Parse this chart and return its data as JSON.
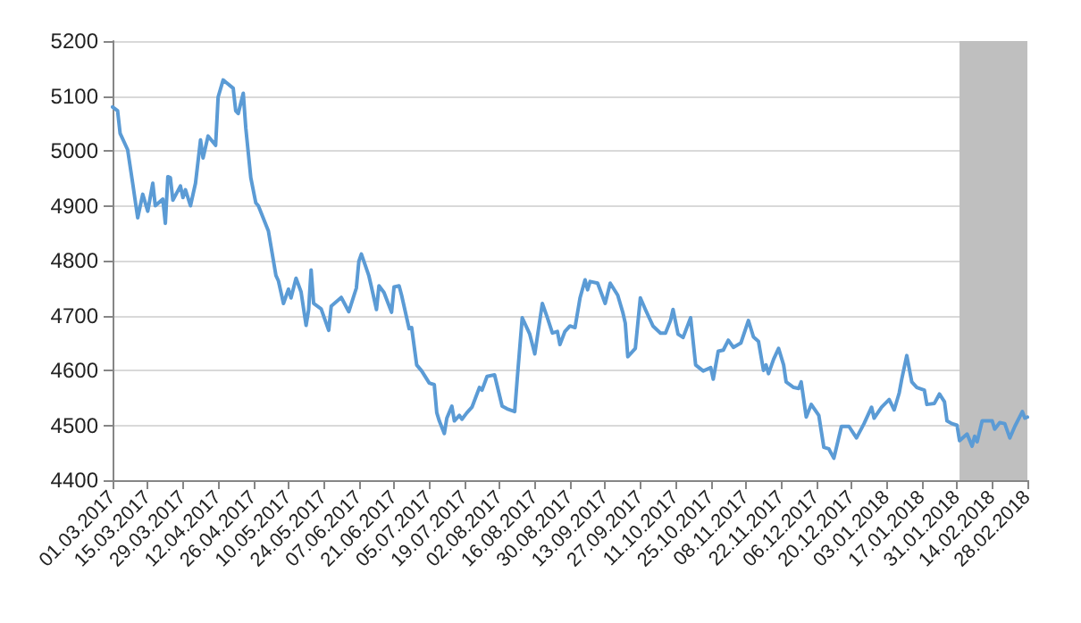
{
  "chart_data": {
    "type": "line",
    "x": [
      "2017-03-01",
      "2017-03-03",
      "2017-03-04",
      "2017-03-07",
      "2017-03-09",
      "2017-03-11",
      "2017-03-13",
      "2017-03-15",
      "2017-03-17",
      "2017-03-18",
      "2017-03-21",
      "2017-03-22",
      "2017-03-23",
      "2017-03-24",
      "2017-03-25",
      "2017-03-28",
      "2017-03-29",
      "2017-03-30",
      "2017-04-01",
      "2017-04-03",
      "2017-04-05",
      "2017-04-06",
      "2017-04-08",
      "2017-04-11",
      "2017-04-12",
      "2017-04-14",
      "2017-04-18",
      "2017-04-19",
      "2017-04-20",
      "2017-04-22",
      "2017-04-23",
      "2017-04-25",
      "2017-04-27",
      "2017-04-28",
      "2017-05-02",
      "2017-05-05",
      "2017-05-06",
      "2017-05-08",
      "2017-05-10",
      "2017-05-11",
      "2017-05-13",
      "2017-05-15",
      "2017-05-17",
      "2017-05-18",
      "2017-05-19",
      "2017-05-20",
      "2017-05-23",
      "2017-05-26",
      "2017-05-27",
      "2017-05-31",
      "2017-06-03",
      "2017-06-06",
      "2017-06-07",
      "2017-06-08",
      "2017-06-11",
      "2017-06-12",
      "2017-06-14",
      "2017-06-15",
      "2017-06-17",
      "2017-06-20",
      "2017-06-21",
      "2017-06-23",
      "2017-06-24",
      "2017-06-27",
      "2017-06-28",
      "2017-06-30",
      "2017-07-02",
      "2017-07-05",
      "2017-07-07",
      "2017-07-08",
      "2017-07-09",
      "2017-07-11",
      "2017-07-12",
      "2017-07-14",
      "2017-07-15",
      "2017-07-17",
      "2017-07-18",
      "2017-07-20",
      "2017-07-22",
      "2017-07-25",
      "2017-07-26",
      "2017-07-28",
      "2017-07-31",
      "2017-08-03",
      "2017-08-05",
      "2017-08-08",
      "2017-08-09",
      "2017-08-11",
      "2017-08-14",
      "2017-08-16",
      "2017-08-19",
      "2017-08-21",
      "2017-08-23",
      "2017-08-25",
      "2017-08-26",
      "2017-08-28",
      "2017-08-30",
      "2017-09-01",
      "2017-09-03",
      "2017-09-05",
      "2017-09-06",
      "2017-09-07",
      "2017-09-10",
      "2017-09-13",
      "2017-09-15",
      "2017-09-18",
      "2017-09-20",
      "2017-09-21",
      "2017-09-22",
      "2017-09-25",
      "2017-09-27",
      "2017-09-29",
      "2017-10-02",
      "2017-10-05",
      "2017-10-07",
      "2017-10-09",
      "2017-10-10",
      "2017-10-12",
      "2017-10-14",
      "2017-10-17",
      "2017-10-19",
      "2017-10-22",
      "2017-10-25",
      "2017-10-26",
      "2017-10-28",
      "2017-10-30",
      "2017-11-01",
      "2017-11-03",
      "2017-11-06",
      "2017-11-09",
      "2017-11-11",
      "2017-11-13",
      "2017-11-15",
      "2017-11-16",
      "2017-11-17",
      "2017-11-19",
      "2017-11-21",
      "2017-11-23",
      "2017-11-24",
      "2017-11-27",
      "2017-11-29",
      "2017-11-30",
      "2017-12-02",
      "2017-12-04",
      "2017-12-07",
      "2017-12-09",
      "2017-12-11",
      "2017-12-13",
      "2017-12-16",
      "2017-12-19",
      "2017-12-22",
      "2017-12-25",
      "2017-12-28",
      "2017-12-29",
      "2018-01-01",
      "2018-01-04",
      "2018-01-06",
      "2018-01-08",
      "2018-01-09",
      "2018-01-11",
      "2018-01-13",
      "2018-01-15",
      "2018-01-18",
      "2018-01-19",
      "2018-01-22",
      "2018-01-24",
      "2018-01-26",
      "2018-01-27",
      "2018-01-29",
      "2018-01-31",
      "2018-02-01",
      "2018-02-04",
      "2018-02-06",
      "2018-02-07",
      "2018-02-08",
      "2018-02-10",
      "2018-02-12",
      "2018-02-14",
      "2018-02-15",
      "2018-02-17",
      "2018-02-19",
      "2018-02-21",
      "2018-02-23",
      "2018-02-26",
      "2018-02-27",
      "2018-02-28"
    ],
    "series": [
      {
        "color": "#5b9bd5",
        "values": [
          5080,
          5073,
          5032,
          5002,
          4941,
          4878,
          4921,
          4890,
          4941,
          4900,
          4912,
          4868,
          4953,
          4951,
          4910,
          4936,
          4915,
          4929,
          4900,
          4941,
          5020,
          4987,
          5027,
          5010,
          5098,
          5129,
          5114,
          5073,
          5068,
          5105,
          5042,
          4951,
          4905,
          4900,
          4854,
          4773,
          4763,
          4722,
          4748,
          4732,
          4768,
          4743,
          4682,
          4710,
          4783,
          4722,
          4712,
          4673,
          4717,
          4733,
          4707,
          4750,
          4799,
          4812,
          4772,
          4752,
          4711,
          4754,
          4742,
          4706,
          4752,
          4754,
          4737,
          4676,
          4678,
          4610,
          4599,
          4577,
          4574,
          4523,
          4508,
          4485,
          4513,
          4535,
          4508,
          4518,
          4511,
          4523,
          4533,
          4569,
          4564,
          4589,
          4592,
          4535,
          4530,
          4525,
          4584,
          4696,
          4666,
          4630,
          4722,
          4696,
          4668,
          4671,
          4647,
          4671,
          4681,
          4678,
          4732,
          4765,
          4747,
          4762,
          4759,
          4722,
          4759,
          4737,
          4706,
          4686,
          4625,
          4640,
          4732,
          4711,
          4681,
          4668,
          4668,
          4691,
          4711,
          4666,
          4660,
          4696,
          4610,
          4599,
          4605,
          4584,
          4635,
          4637,
          4655,
          4642,
          4650,
          4691,
          4661,
          4653,
          4600,
          4610,
          4594,
          4620,
          4640,
          4610,
          4579,
          4569,
          4567,
          4579,
          4515,
          4538,
          4518,
          4460,
          4457,
          4440,
          4498,
          4498,
          4477,
          4503,
          4533,
          4513,
          4533,
          4547,
          4528,
          4559,
          4584,
          4627,
          4579,
          4569,
          4564,
          4538,
          4540,
          4557,
          4543,
          4508,
          4503,
          4500,
          4472,
          4484,
          4462,
          4480,
          4470,
          4508,
          4508,
          4508,
          4493,
          4505,
          4503,
          4477,
          4498,
          4525,
          4513,
          4515
        ]
      }
    ],
    "xlim": [
      "2017-03-01",
      "2018-02-28"
    ],
    "xticks": [
      {
        "value": "2017-03-01",
        "label": "01.03.2017"
      },
      {
        "value": "2017-03-15",
        "label": "15.03.2017"
      },
      {
        "value": "2017-03-29",
        "label": "29.03.2017"
      },
      {
        "value": "2017-04-12",
        "label": "12.04.2017"
      },
      {
        "value": "2017-04-26",
        "label": "26.04.2017"
      },
      {
        "value": "2017-05-10",
        "label": "10.05.2017"
      },
      {
        "value": "2017-05-24",
        "label": "24.05.2017"
      },
      {
        "value": "2017-06-07",
        "label": "07.06.2017"
      },
      {
        "value": "2017-06-21",
        "label": "21.06.2017"
      },
      {
        "value": "2017-07-05",
        "label": "05.07.2017"
      },
      {
        "value": "2017-07-19",
        "label": "19.07.2017"
      },
      {
        "value": "2017-08-02",
        "label": "02.08.2017"
      },
      {
        "value": "2017-08-16",
        "label": "16.08.2017"
      },
      {
        "value": "2017-08-30",
        "label": "30.08.2017"
      },
      {
        "value": "2017-09-13",
        "label": "13.09.2017"
      },
      {
        "value": "2017-09-27",
        "label": "27.09.2017"
      },
      {
        "value": "2017-10-11",
        "label": "11.10.2017"
      },
      {
        "value": "2017-10-25",
        "label": "25.10.2017"
      },
      {
        "value": "2017-11-08",
        "label": "08.11.2017"
      },
      {
        "value": "2017-11-22",
        "label": "22.11.2017"
      },
      {
        "value": "2017-12-06",
        "label": "06.12.2017"
      },
      {
        "value": "2017-12-20",
        "label": "20.12.2017"
      },
      {
        "value": "2018-01-03",
        "label": "03.01.2018"
      },
      {
        "value": "2018-01-17",
        "label": "17.01.2018"
      },
      {
        "value": "2018-01-31",
        "label": "31.01.2018"
      },
      {
        "value": "2018-02-14",
        "label": "14.02.2018"
      },
      {
        "value": "2018-02-28",
        "label": "28.02.2018"
      }
    ],
    "ylim": [
      4400,
      5200
    ],
    "yticks": [
      4400,
      4500,
      4600,
      4700,
      4800,
      4900,
      5000,
      5100,
      5200
    ],
    "bands": [
      {
        "axis": "x",
        "from": "2018-02-01",
        "to": "2018-02-28",
        "color": "#bfbfbf"
      }
    ],
    "grid": "y",
    "marker": "none",
    "line_style": "solid"
  }
}
